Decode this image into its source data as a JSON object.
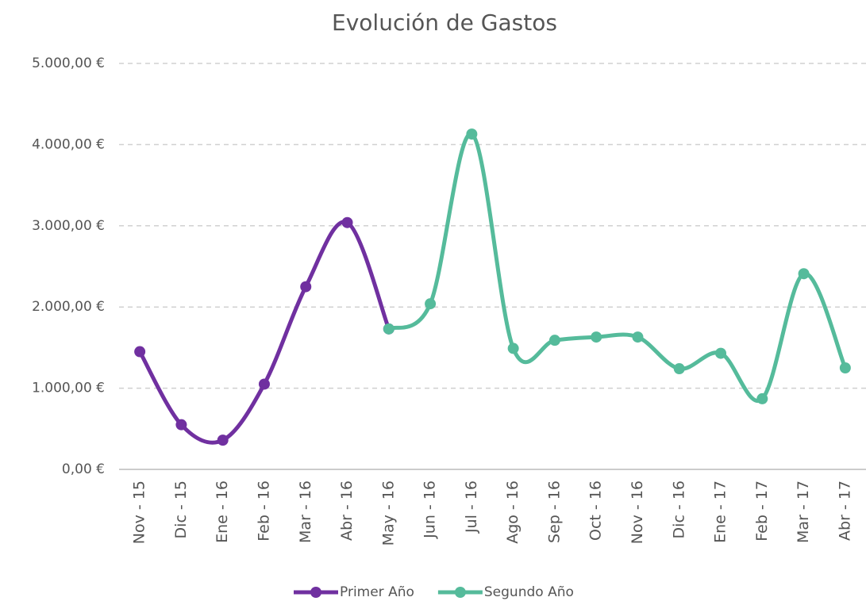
{
  "chart_data": {
    "type": "line",
    "title": "Evolución de Gastos",
    "categories": [
      "Nov - 15",
      "Dic - 15",
      "Ene - 16",
      "Feb - 16",
      "Mar - 16",
      "Abr - 16",
      "May - 16",
      "Jun - 16",
      "Jul - 16",
      "Ago - 16",
      "Sep - 16",
      "Oct - 16",
      "Nov - 16",
      "Dic - 16",
      "Ene - 17",
      "Feb - 17",
      "Mar - 17",
      "Abr - 17"
    ],
    "series": [
      {
        "name": "Primer Año",
        "color": "#7030a0",
        "values": [
          1450,
          550,
          360,
          1050,
          2250,
          3040,
          1730,
          null,
          null,
          null,
          null,
          null,
          null,
          null,
          null,
          null,
          null,
          null
        ]
      },
      {
        "name": "Segundo Año",
        "color": "#55bb9b",
        "values": [
          null,
          null,
          null,
          null,
          null,
          null,
          1730,
          2040,
          4130,
          1490,
          1590,
          1630,
          1630,
          1240,
          1430,
          870,
          2410,
          1250
        ]
      }
    ],
    "ylim": [
      0,
      5000
    ],
    "yticks": [
      {
        "value": 0,
        "label": "0,00 €"
      },
      {
        "value": 1000,
        "label": "1.000,00 €"
      },
      {
        "value": 2000,
        "label": "2.000,00 €"
      },
      {
        "value": 3000,
        "label": "3.000,00 €"
      },
      {
        "value": 4000,
        "label": "4.000,00 €"
      },
      {
        "value": 5000,
        "label": "5.000,00 €"
      }
    ],
    "grid": true,
    "smooth": true,
    "legend": "bottom"
  }
}
